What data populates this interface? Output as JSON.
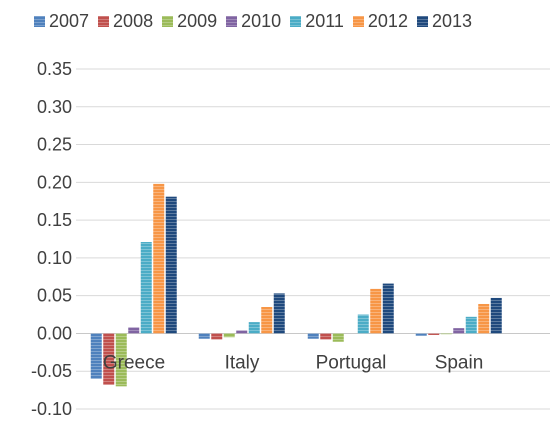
{
  "chart_data": {
    "type": "bar",
    "categories": [
      "Greece",
      "Italy",
      "Portugal",
      "Spain"
    ],
    "series": [
      {
        "name": "2007",
        "color": "#4f81bd",
        "values": [
          -0.06,
          -0.007,
          -0.007,
          -0.003
        ]
      },
      {
        "name": "2008",
        "color": "#c0504d",
        "values": [
          -0.068,
          -0.008,
          -0.008,
          -0.002
        ]
      },
      {
        "name": "2009",
        "color": "#9bbb59",
        "values": [
          -0.07,
          -0.005,
          -0.011,
          -0.001
        ]
      },
      {
        "name": "2010",
        "color": "#8064a2",
        "values": [
          0.008,
          0.004,
          0.0,
          0.007
        ]
      },
      {
        "name": "2011",
        "color": "#4bacc6",
        "values": [
          0.121,
          0.015,
          0.025,
          0.022
        ]
      },
      {
        "name": "2012",
        "color": "#f79646",
        "values": [
          0.198,
          0.035,
          0.059,
          0.039
        ]
      },
      {
        "name": "2013",
        "color": "#1f497d",
        "values": [
          0.181,
          0.053,
          0.066,
          0.047
        ]
      }
    ],
    "ylim": [
      -0.1,
      0.35
    ],
    "yticks": [
      0.35,
      0.3,
      0.25,
      0.2,
      0.15,
      0.1,
      0.05,
      0.0,
      -0.05,
      -0.1
    ],
    "ytick_labels": [
      "0.35",
      "0.30",
      "0.25",
      "0.20",
      "0.15",
      "0.10",
      "0.05",
      "0.00",
      "-0.05",
      "-0.10"
    ],
    "title": "",
    "xlabel": "",
    "ylabel": "",
    "grid": true,
    "legend_position": "top"
  }
}
